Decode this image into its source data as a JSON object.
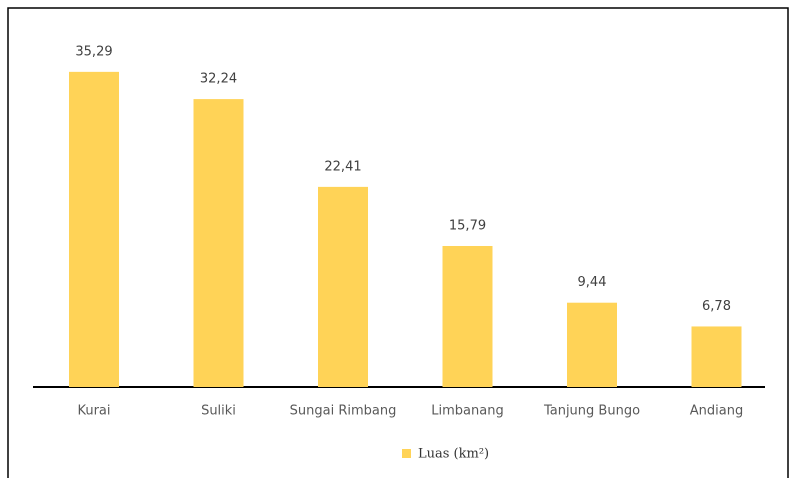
{
  "chart_data": {
    "type": "bar",
    "categories": [
      "Kurai",
      "Suliki",
      "Sungai Rimbang",
      "Limbanang",
      "Tanjung Bungo",
      "Andiang"
    ],
    "series": [
      {
        "name": "Luas (km²)",
        "color": "#ffd357",
        "values": [
          35.29,
          32.24,
          22.41,
          15.79,
          9.44,
          6.78
        ],
        "value_labels": [
          "35,29",
          "32,24",
          "22,41",
          "15,79",
          "9,44",
          "6,78"
        ]
      }
    ]
  }
}
